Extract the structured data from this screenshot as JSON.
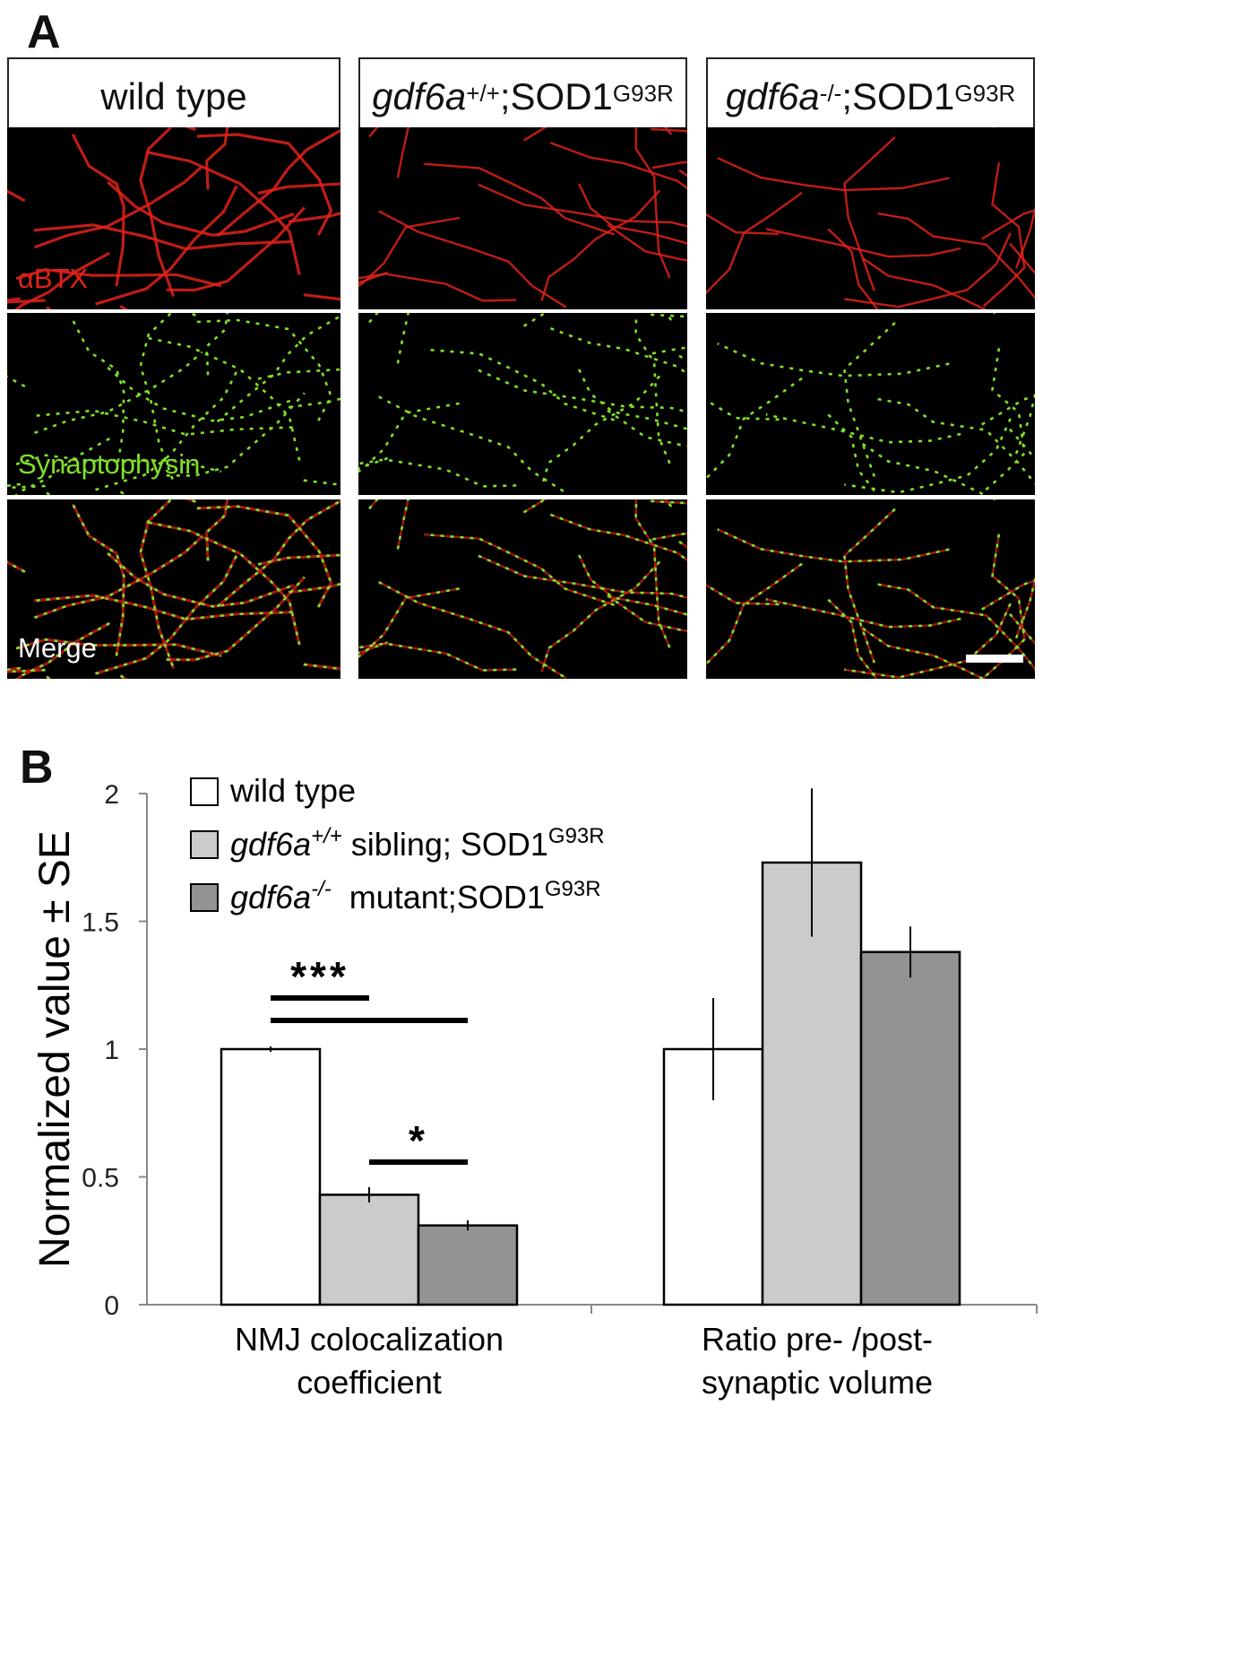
{
  "panel_a": {
    "letter": "A",
    "columns": [
      {
        "name_italic": "",
        "name_sup": "",
        "name_plain": "wild type",
        "plain_sup": ""
      },
      {
        "name_italic": "gdf6a",
        "name_sup": "+/+",
        "name_plain": ";SOD1",
        "plain_sup": "G93R"
      },
      {
        "name_italic": "gdf6a",
        "name_sup": "-/-",
        "name_plain": ";SOD1",
        "plain_sup": "G93R"
      }
    ],
    "row_labels": [
      "αBTX",
      "Synaptophysin",
      "Merge"
    ],
    "colors": {
      "red": "#e0221a",
      "green": "#7fe02a",
      "label_white": "#ffffff"
    }
  },
  "panel_b": {
    "letter": "B"
  },
  "chart_data": {
    "type": "bar",
    "ylabel": "Normalized value ± SE",
    "ylim": [
      0,
      2
    ],
    "yticks": [
      "0",
      "0.5",
      "1",
      "1.5",
      "2"
    ],
    "categories": [
      "NMJ colocalization coefficient",
      "Ratio pre- /post- synaptic volume"
    ],
    "category_lines": [
      [
        "NMJ colocalization",
        "coefficient"
      ],
      [
        "Ratio pre- /post-",
        "synaptic volume"
      ]
    ],
    "series": [
      {
        "name": "wild type",
        "legend_italic": "",
        "legend_sup1": "",
        "legend_rest": "wild type",
        "legend_sup2": "",
        "color": "#ffffff",
        "values": [
          1.0,
          1.0
        ],
        "errors": [
          0.0,
          0.2
        ]
      },
      {
        "name": "gdf6a+/+ sibling; SOD1G93R",
        "legend_italic": "gdf6a",
        "legend_sup1": "+/+",
        "legend_rest": " sibling; SOD1",
        "legend_sup2": "G93R",
        "color": "#cbcbcb",
        "values": [
          0.43,
          1.73
        ],
        "errors": [
          0.03,
          0.29
        ]
      },
      {
        "name": "gdf6a-/- mutant;SOD1G93R",
        "legend_italic": "gdf6a",
        "legend_sup1": "-/-",
        "legend_rest": "  mutant;SOD1",
        "legend_sup2": "G93R",
        "color": "#939393",
        "values": [
          0.31,
          1.38
        ],
        "errors": [
          0.02,
          0.1
        ]
      }
    ],
    "significance": [
      {
        "label": "***",
        "between": [
          0,
          1
        ],
        "category": 0
      },
      {
        "label": "",
        "between": [
          0,
          2
        ],
        "category": 0
      },
      {
        "label": "*",
        "between": [
          1,
          2
        ],
        "category": 0
      }
    ],
    "grid": false,
    "legend_position": "top-left"
  }
}
